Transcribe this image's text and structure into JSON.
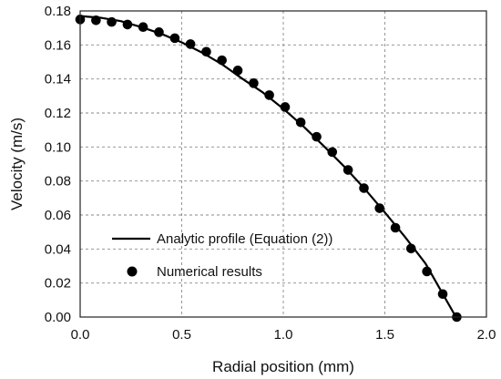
{
  "chart_data": {
    "type": "scatter",
    "xlabel": "Radial position (mm)",
    "ylabel": "Velocity (m/s)",
    "xlim": [
      0.0,
      2.0
    ],
    "ylim": [
      0.0,
      0.18
    ],
    "x_ticks": [
      "0.0",
      "0.5",
      "1.0",
      "1.5",
      "2.0"
    ],
    "y_ticks": [
      "0.00",
      "0.02",
      "0.04",
      "0.06",
      "0.08",
      "0.10",
      "0.12",
      "0.14",
      "0.16",
      "0.18"
    ],
    "grid": true,
    "grid_style": "dashed",
    "legend_position": "lower-left",
    "series": [
      {
        "name": "Analytic profile (Equation (2))",
        "kind": "line",
        "color": "#000000",
        "x": [
          0.0,
          0.1,
          0.2,
          0.3,
          0.4,
          0.5,
          0.6,
          0.7,
          0.8,
          0.9,
          1.0,
          1.1,
          1.2,
          1.3,
          1.4,
          1.5,
          1.6,
          1.7,
          1.8,
          1.85
        ],
        "y": [
          0.177,
          0.176,
          0.174,
          0.1705,
          0.1665,
          0.1615,
          0.1555,
          0.1485,
          0.14,
          0.132,
          0.1225,
          0.112,
          0.1005,
          0.0885,
          0.0755,
          0.0615,
          0.047,
          0.0315,
          0.0105,
          0.0
        ]
      },
      {
        "name": "Numerical results",
        "kind": "scatter",
        "color": "#000000",
        "x": [
          0.0,
          0.078,
          0.155,
          0.233,
          0.31,
          0.388,
          0.466,
          0.543,
          0.621,
          0.698,
          0.776,
          0.854,
          0.931,
          1.009,
          1.086,
          1.164,
          1.241,
          1.319,
          1.397,
          1.474,
          1.552,
          1.629,
          1.707,
          1.785,
          1.854
        ],
        "y": [
          0.175,
          0.1745,
          0.1735,
          0.172,
          0.1705,
          0.1675,
          0.164,
          0.1605,
          0.156,
          0.151,
          0.145,
          0.1375,
          0.1305,
          0.1235,
          0.1145,
          0.106,
          0.097,
          0.0865,
          0.0758,
          0.064,
          0.0525,
          0.0403,
          0.0268,
          0.0135,
          0.0
        ]
      }
    ]
  }
}
